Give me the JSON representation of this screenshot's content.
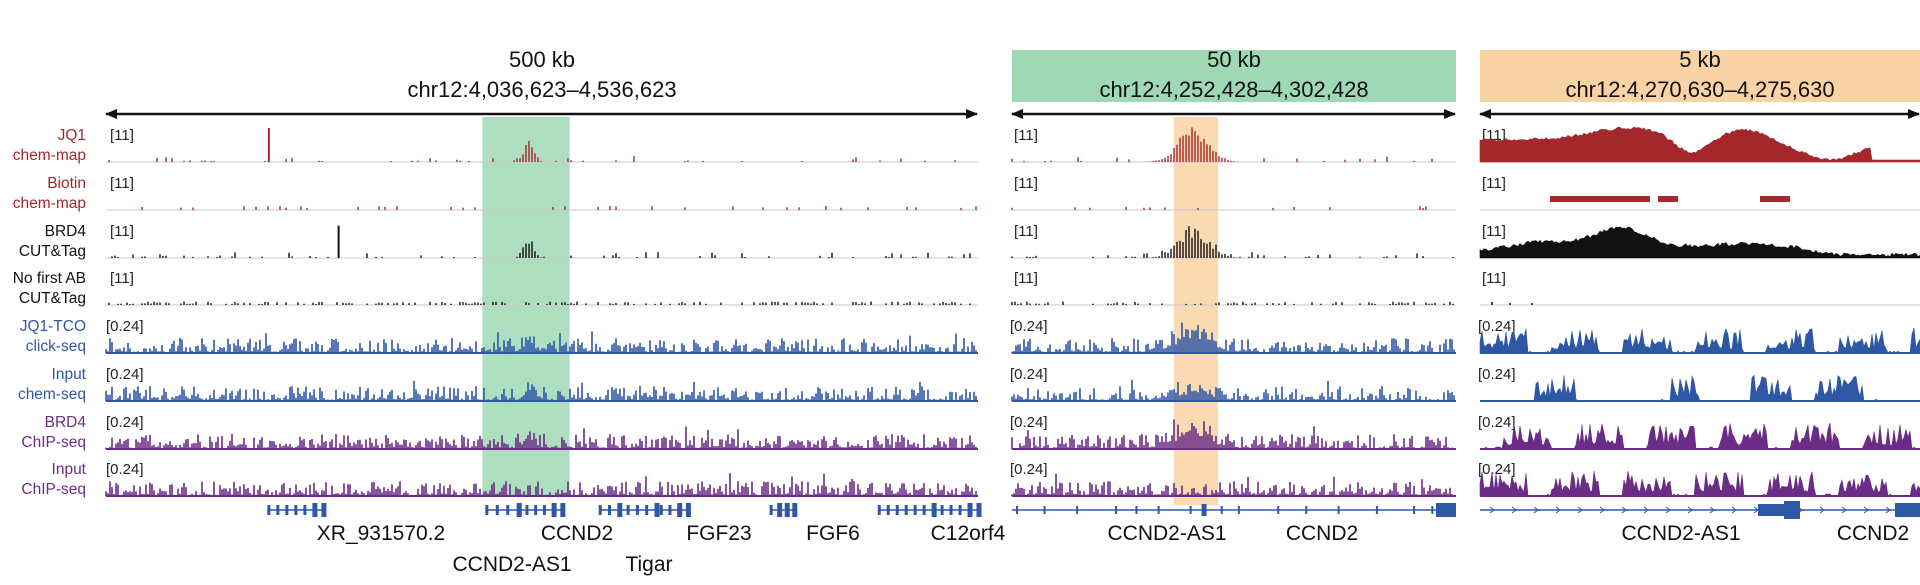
{
  "colors": {
    "red": "#a3272b",
    "black": "#111111",
    "blue": "#2e57a5",
    "purple": "#6a2c86",
    "green_highlight": "#9fd8b4",
    "orange_highlight": "#f9d3a3",
    "gene": "#2e57a5",
    "baseline": "#c9c9c9"
  },
  "chart_data": {
    "type": "genome-browser-tracks",
    "tracks": [
      {
        "label_lines": [
          "JQ1",
          "chem-map"
        ],
        "color": "red",
        "scale": "[11]",
        "kind": "sparse",
        "density": 0.18
      },
      {
        "label_lines": [
          "Biotin",
          "chem-map"
        ],
        "color": "red",
        "scale": "[11]",
        "kind": "blocks",
        "density": 0.12
      },
      {
        "label_lines": [
          "BRD4",
          "CUT&Tag"
        ],
        "color": "black",
        "scale": "[11]",
        "kind": "sparse",
        "density": 0.22
      },
      {
        "label_lines": [
          "No first AB",
          "CUT&Tag"
        ],
        "color": "black",
        "scale": "[11]",
        "kind": "noise",
        "density": 0.5
      },
      {
        "label_lines": [
          "JQ1-TCO",
          "click-seq"
        ],
        "color": "blue",
        "scale": "[0.24]",
        "kind": "dense",
        "density": 0.95
      },
      {
        "label_lines": [
          "Input",
          "chem-seq"
        ],
        "color": "blue",
        "scale": "[0.24]",
        "kind": "dense",
        "density": 0.85
      },
      {
        "label_lines": [
          "BRD4",
          "ChIP-seq"
        ],
        "color": "purple",
        "scale": "[0.24]",
        "kind": "dense",
        "density": 0.95
      },
      {
        "label_lines": [
          "Input",
          "ChIP-seq"
        ],
        "color": "purple",
        "scale": "[0.24]",
        "kind": "dense",
        "density": 0.9
      }
    ],
    "panels": [
      {
        "span_label": "500 kb",
        "region": "chr12:4,036,623–4,536,623",
        "region_start": 4036623,
        "region_end": 4536623,
        "header_color": null,
        "highlight": {
          "start": 4252428,
          "end": 4302428,
          "color": "green_highlight"
        },
        "peak_center": 4279000,
        "peak_strength": [
          0.55,
          0.0,
          0.5,
          0.0,
          0.3,
          0.15,
          0.3,
          0.0
        ],
        "extra_spikes": [
          {
            "track": 0,
            "pos": 4130000,
            "height": 1.0
          },
          {
            "track": 2,
            "pos": 4170000,
            "height": 0.95
          }
        ],
        "genes": [
          {
            "name": "XR_931570.2",
            "start": 4130000,
            "end": 4161000,
            "label_row": 1
          },
          {
            "name": "CCND2-AS1",
            "start": 4255000,
            "end": 4273000,
            "label_row": 2
          },
          {
            "name": "CCND2",
            "start": 4273000,
            "end": 4298000,
            "label_row": 1
          },
          {
            "name": "Tigar",
            "start": 4320000,
            "end": 4352000,
            "label_row": 2
          },
          {
            "name": "FGF23",
            "start": 4355000,
            "end": 4370000,
            "label_row": 1
          },
          {
            "name": "FGF6",
            "start": 4418000,
            "end": 4431000,
            "label_row": 1
          },
          {
            "name": "C12orf4",
            "start": 4480000,
            "end": 4536623,
            "label_row": 1
          }
        ]
      },
      {
        "span_label": "50 kb",
        "region": "chr12:4,252,428–4,302,428",
        "region_start": 4252428,
        "region_end": 4302428,
        "header_color": "green_highlight",
        "highlight": {
          "start": 4270630,
          "end": 4275630,
          "color": "orange_highlight"
        },
        "peak_center": 4272800,
        "peak_strength": [
          0.85,
          0.0,
          0.75,
          0.0,
          0.55,
          0.2,
          0.45,
          0.0
        ],
        "extra_spikes": [],
        "genes": [
          {
            "name": "CCND2-AS1",
            "start": 4252428,
            "end": 4281000,
            "label_row": 1
          },
          {
            "name": "CCND2",
            "start": 4274000,
            "end": 4302428,
            "label_row": 1
          }
        ]
      },
      {
        "span_label": "5 kb",
        "region": "chr12:4,270,630–4,275,630",
        "region_start": 4270630,
        "region_end": 4275630,
        "header_color": "orange_highlight",
        "highlight": null,
        "peak_center": 4273000,
        "peak_strength": [
          0.0,
          0.0,
          0.0,
          0.0,
          0.0,
          0.0,
          0.0,
          0.0
        ],
        "extra_spikes": [],
        "genes": [
          {
            "name": "CCND2-AS1",
            "start": 4270630,
            "end": 4275200,
            "label_row": 1
          },
          {
            "name": "CCND2",
            "start": 4273700,
            "end": 4275630,
            "label_row": 1
          }
        ]
      }
    ]
  }
}
